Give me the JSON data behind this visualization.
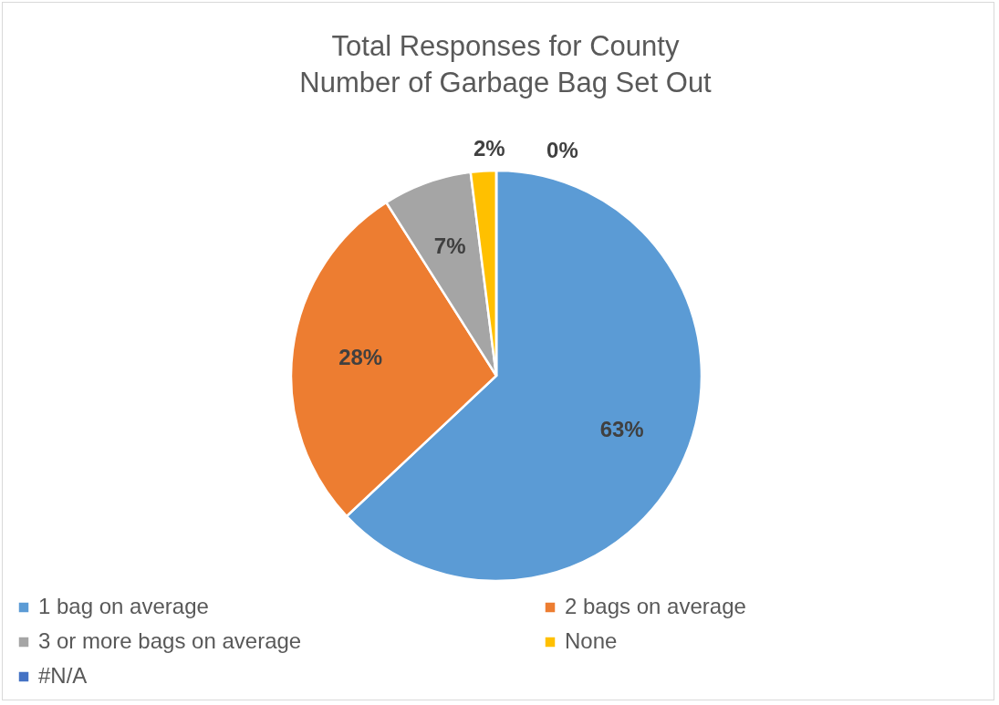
{
  "chart_data": {
    "type": "pie",
    "title": "Total Responses for County\nNumber of Garbage Bag Set Out",
    "categories": [
      "1 bag on average",
      "2 bags on average",
      "3 or more bags on average",
      "None",
      "#N/A"
    ],
    "values": [
      63,
      28,
      7,
      2,
      0
    ],
    "colors": [
      "#5b9bd5",
      "#ed7d31",
      "#a5a5a5",
      "#ffc000",
      "#4472c4"
    ],
    "value_labels": [
      "63%",
      "28%",
      "7%",
      "2%",
      "0%"
    ],
    "legend": "bottom"
  }
}
